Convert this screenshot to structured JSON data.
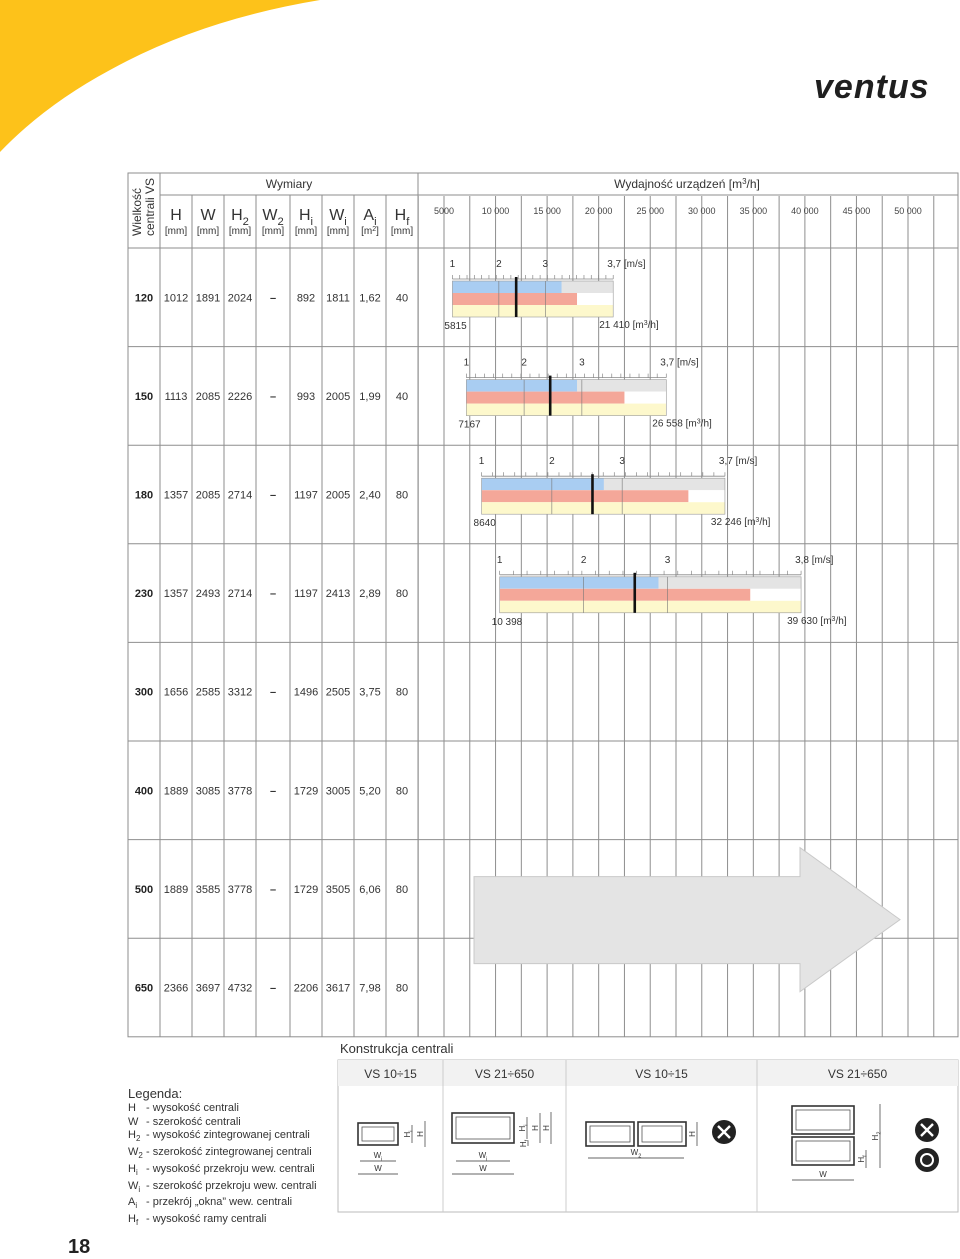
{
  "brand": {
    "logo_text": "ventus"
  },
  "page_number": "18",
  "table": {
    "size_header": "Wielkość centrali VS",
    "dims_header": "Wymiary",
    "capacity_header": "Wydajność urządzeń [m³/h]",
    "columns": [
      {
        "label": "H",
        "unit": "[mm]"
      },
      {
        "label": "W",
        "unit": "[mm]"
      },
      {
        "label": "H₂",
        "unit": "[mm]"
      },
      {
        "label": "W₂",
        "unit": "[mm]"
      },
      {
        "label": "Hᵢ",
        "unit": "[mm]"
      },
      {
        "label": "Wᵢ",
        "unit": "[mm]"
      },
      {
        "label": "Aᵢ",
        "unit": "[m²]"
      },
      {
        "label": "H_f",
        "unit": "[mm]"
      }
    ],
    "scale_ticks": [
      "5000",
      "10 000",
      "15 000",
      "20 000",
      "25 000",
      "30 000",
      "35 000",
      "40 000",
      "45 000",
      "50 000"
    ],
    "rows": [
      {
        "size": "120",
        "H": "1012",
        "W": "1891",
        "H2": "2024",
        "W2": "–",
        "Hi": "892",
        "Wi": "1811",
        "Ai": "1,62",
        "Hf": "40"
      },
      {
        "size": "150",
        "H": "1113",
        "W": "2085",
        "H2": "2226",
        "W2": "–",
        "Hi": "993",
        "Wi": "2005",
        "Ai": "1,99",
        "Hf": "40"
      },
      {
        "size": "180",
        "H": "1357",
        "W": "2085",
        "H2": "2714",
        "W2": "–",
        "Hi": "1197",
        "Wi": "2005",
        "Ai": "2,40",
        "Hf": "80"
      },
      {
        "size": "230",
        "H": "1357",
        "W": "2493",
        "H2": "2714",
        "W2": "–",
        "Hi": "1197",
        "Wi": "2413",
        "Ai": "2,89",
        "Hf": "80"
      },
      {
        "size": "300",
        "H": "1656",
        "W": "2585",
        "H2": "3312",
        "W2": "–",
        "Hi": "1496",
        "Wi": "2505",
        "Ai": "3,75",
        "Hf": "80"
      },
      {
        "size": "400",
        "H": "1889",
        "W": "3085",
        "H2": "3778",
        "W2": "–",
        "Hi": "1729",
        "Wi": "3005",
        "Ai": "5,20",
        "Hf": "80"
      },
      {
        "size": "500",
        "H": "1889",
        "W": "3585",
        "H2": "3778",
        "W2": "–",
        "Hi": "1729",
        "Wi": "3505",
        "Ai": "6,06",
        "Hf": "80"
      },
      {
        "size": "650",
        "H": "2366",
        "W": "3697",
        "H2": "4732",
        "W2": "–",
        "Hi": "2206",
        "Wi": "3617",
        "Ai": "7,98",
        "Hf": "80"
      }
    ]
  },
  "capacity_bars": [
    {
      "size": "120",
      "min": 5815,
      "max": 21410,
      "min_label": "5815",
      "max_label": "21 410 [m³/h]",
      "speed_labels": [
        "1",
        "2",
        "3",
        "3,7 [m/s]"
      ],
      "blue_end": 16400,
      "red_end": 17900,
      "marker": 12000
    },
    {
      "size": "150",
      "min": 7167,
      "max": 26558,
      "min_label": "7167",
      "max_label": "26 558 [m³/h]",
      "speed_labels": [
        "1",
        "2",
        "3",
        "3,7 [m/s]"
      ],
      "blue_end": 17900,
      "red_end": 22500,
      "marker": 15300
    },
    {
      "size": "180",
      "min": 8640,
      "max": 32246,
      "min_label": "8640",
      "max_label": "32 246 [m³/h]",
      "speed_labels": [
        "1",
        "2",
        "3",
        "3,7 [m/s]"
      ],
      "blue_end": 20500,
      "red_end": 28700,
      "marker": 19400
    },
    {
      "size": "230",
      "min": 10398,
      "max": 39630,
      "min_label": "10 398",
      "max_label": "39 630 [m³/h]",
      "speed_labels": [
        "1",
        "2",
        "3",
        "3,8 [m/s]"
      ],
      "blue_end": 25800,
      "red_end": 34700,
      "marker": 23500
    }
  ],
  "big_arrow_note": "",
  "construction": {
    "title": "Konstrukcja centrali",
    "groups": [
      {
        "label": "VS 10÷15"
      },
      {
        "label": "VS 21÷650"
      },
      {
        "label": "VS 10÷15"
      },
      {
        "label": "VS 21÷650"
      }
    ],
    "dim_labels": {
      "Wi": "Wᵢ",
      "W": "W",
      "Hi": "Hᵢ",
      "H": "H",
      "Hf": "H_f",
      "W2": "W₂",
      "H2": "H₂"
    }
  },
  "legend": {
    "title": "Legenda:",
    "items": [
      {
        "key": "H",
        "text": "- wysokość centrali"
      },
      {
        "key": "W",
        "text": "- szerokość centrali"
      },
      {
        "key": "H₂",
        "text": "- wysokość zintegrowanej centrali"
      },
      {
        "key": "W₂",
        "text": "- szerokość zintegrowanej centrali"
      },
      {
        "key": "Hᵢ",
        "text": "- wysokość przekroju wew. centrali"
      },
      {
        "key": "Wᵢ",
        "text": "- szerokość przekroju wew. centrali"
      },
      {
        "key": "Aᵢ",
        "text": "- przekrój „okna” wew. centrali"
      },
      {
        "key": "H_f",
        "text": "- wysokość ramy centrali"
      }
    ]
  },
  "colors": {
    "accent_yellow": "#FDC21A",
    "bar_blue": "#A9CDF2",
    "bar_red": "#F4A799",
    "bar_yellow": "#FDF8CC",
    "bar_grey": "#E4E4E4",
    "grid": "#8E8E8E"
  }
}
